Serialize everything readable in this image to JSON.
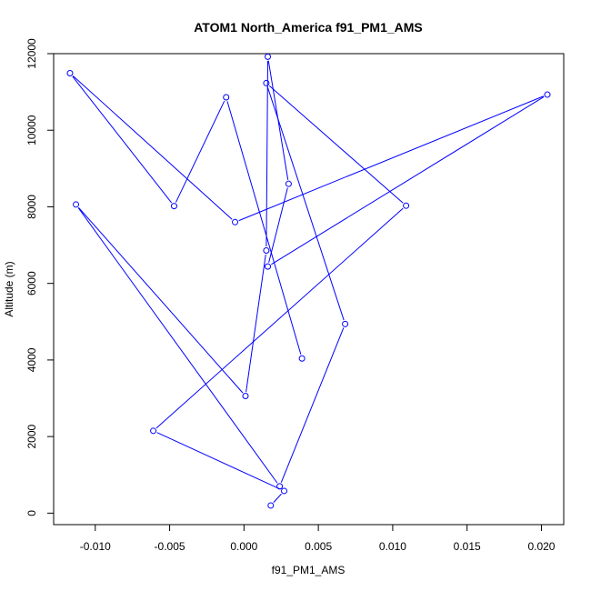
{
  "chart_data": {
    "type": "line",
    "title": "ATOM1 North_America f91_PM1_AMS",
    "xlabel": "f91_PM1_AMS",
    "ylabel": "Altitude (m)",
    "xlim": [
      -0.0128,
      0.0215
    ],
    "ylim": [
      -300,
      12000
    ],
    "xticks": [
      -0.01,
      -0.005,
      0.0,
      0.005,
      0.01,
      0.015,
      0.02
    ],
    "xtick_labels": [
      "-0.010",
      "-0.005",
      "0.000",
      "0.005",
      "0.010",
      "0.015",
      "0.020"
    ],
    "yticks": [
      0,
      2000,
      4000,
      6000,
      8000,
      10000,
      12000
    ],
    "ytick_labels": [
      "0",
      "2000",
      "4000",
      "6000",
      "8000",
      "10000",
      "12000"
    ],
    "grid": false,
    "series_color": "#0000ff",
    "marker": "open-circle",
    "points": [
      {
        "x": 0.0018,
        "y": 200
      },
      {
        "x": 0.0027,
        "y": 580
      },
      {
        "x": -0.0061,
        "y": 2150
      },
      {
        "x": 0.0109,
        "y": 8030
      },
      {
        "x": 0.0015,
        "y": 11230
      },
      {
        "x": 0.0068,
        "y": 4940
      },
      {
        "x": 0.0024,
        "y": 700
      },
      {
        "x": -0.0113,
        "y": 8060
      },
      {
        "x": 0.0001,
        "y": 3060
      },
      {
        "x": 0.0015,
        "y": 6860
      },
      {
        "x": 0.0016,
        "y": 11920
      },
      {
        "x": 0.003,
        "y": 8600
      },
      {
        "x": 0.0016,
        "y": 6440
      },
      {
        "x": 0.0204,
        "y": 10930
      },
      {
        "x": -0.0006,
        "y": 7600
      },
      {
        "x": -0.0117,
        "y": 11490
      },
      {
        "x": -0.0047,
        "y": 8020
      },
      {
        "x": -0.0012,
        "y": 10860
      },
      {
        "x": 0.0039,
        "y": 4040
      }
    ]
  }
}
